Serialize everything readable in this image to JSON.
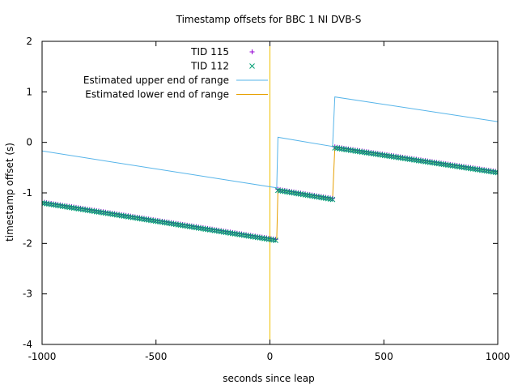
{
  "chart_data": {
    "type": "line",
    "title": "Timestamp offsets for BBC 1 NI DVB-S",
    "xlabel": "seconds since leap",
    "ylabel": "timestamp offset (s)",
    "xlim": [
      -1000,
      1000
    ],
    "ylim": [
      -4,
      2
    ],
    "x_ticks": [
      "-1000",
      "-500",
      "0",
      "500",
      "1000"
    ],
    "x_tick_values": [
      -1000,
      -500,
      0,
      500,
      1000
    ],
    "y_ticks": [
      "2",
      "1",
      "0",
      "-1",
      "-2",
      "-3",
      "-4"
    ],
    "y_tick_values": [
      2,
      1,
      0,
      -1,
      -2,
      -3,
      -4
    ],
    "grid": false,
    "legend_position": "top-center",
    "vertical_marker": {
      "x": 0,
      "color": "#f0c000"
    },
    "series": [
      {
        "name": "TID 115",
        "style": "points",
        "marker": "+",
        "color": "#9400d3",
        "segments": [
          {
            "x": [
              -1000,
              25
            ],
            "y": [
              -1.18,
              -1.92
            ]
          },
          {
            "x": [
              35,
              275
            ],
            "y": [
              -0.93,
              -1.11
            ]
          },
          {
            "x": [
              285,
              1000
            ],
            "y": [
              -0.09,
              -0.58
            ]
          }
        ]
      },
      {
        "name": "TID 112",
        "style": "points",
        "marker": "x",
        "color": "#009e73",
        "segments": [
          {
            "x": [
              -1000,
              25
            ],
            "y": [
              -1.2,
              -1.94
            ]
          },
          {
            "x": [
              35,
              275
            ],
            "y": [
              -0.95,
              -1.13
            ]
          },
          {
            "x": [
              285,
              1000
            ],
            "y": [
              -0.11,
              -0.6
            ]
          }
        ]
      },
      {
        "name": "Estimated upper end of range",
        "style": "line",
        "color": "#56b4e9",
        "x": [
          -1000,
          30,
          35,
          275,
          285,
          1000
        ],
        "y": [
          -0.17,
          -0.9,
          0.1,
          -0.08,
          0.9,
          0.41
        ]
      },
      {
        "name": "Estimated lower end of range",
        "style": "line",
        "color": "#e69f00",
        "x": [
          -1000,
          30,
          35,
          275,
          285,
          1000
        ],
        "y": [
          -1.19,
          -1.93,
          -0.94,
          -1.12,
          -0.1,
          -0.59
        ]
      }
    ]
  }
}
